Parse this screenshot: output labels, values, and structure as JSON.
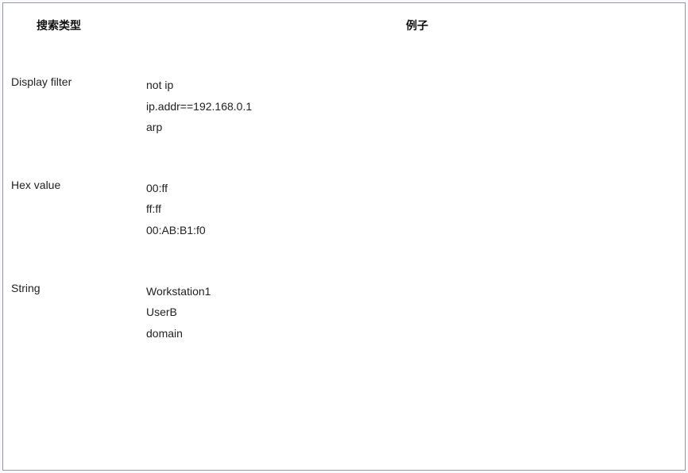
{
  "table": {
    "header": {
      "type_label": "搜索类型",
      "example_label": "例子"
    },
    "rows": [
      {
        "type": "Display filter",
        "examples": [
          "not ip",
          "ip.addr==192.168.0.1",
          "arp"
        ]
      },
      {
        "type": "Hex value",
        "examples": [
          "00:ff",
          "ff:ff",
          "00:AB:B1:f0"
        ]
      },
      {
        "type": "String",
        "examples": [
          "Workstation1",
          "UserB",
          "domain"
        ]
      }
    ],
    "colors": {
      "border": "#999999",
      "background": "#ffffff",
      "page_background": "#f8f9fc",
      "header_text": "#111111",
      "body_text": "#222222"
    },
    "font_size_pt": 10.5
  }
}
